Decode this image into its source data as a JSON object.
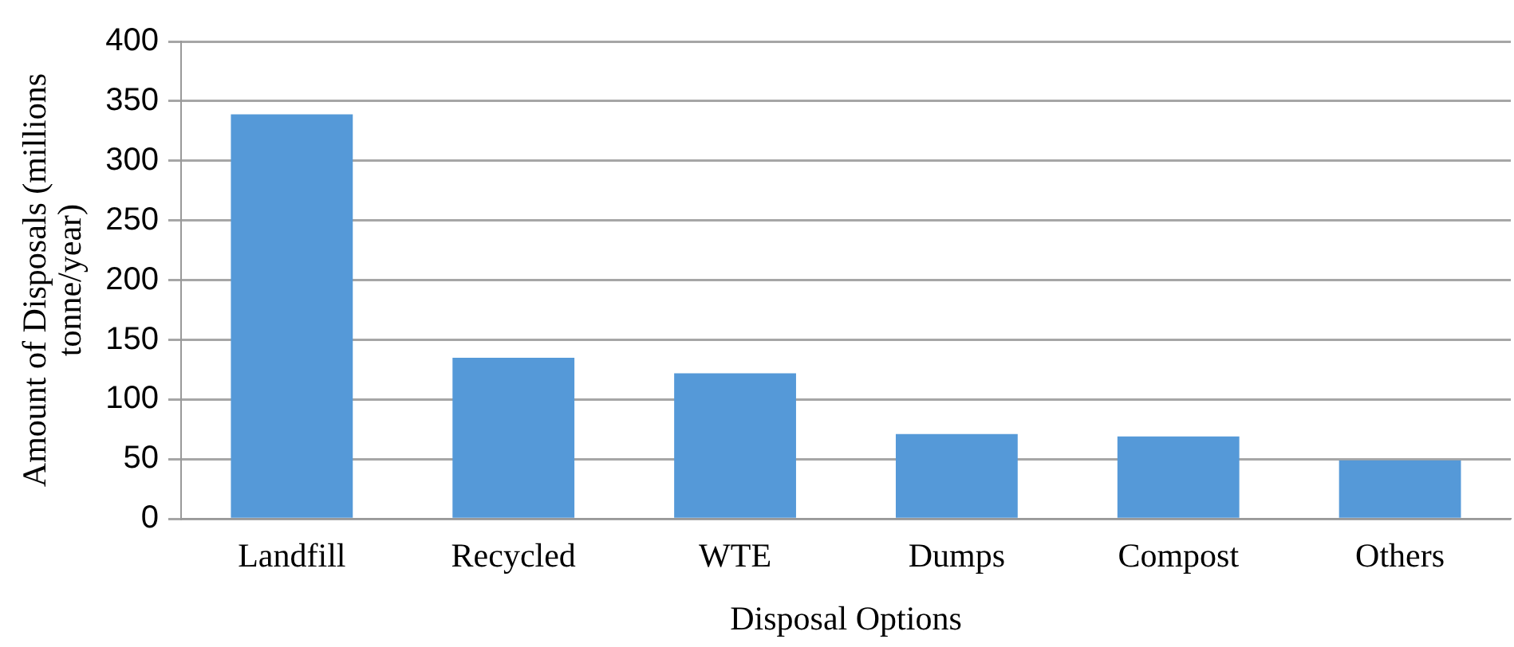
{
  "chart_data": {
    "type": "bar",
    "xlabel": "Disposal Options",
    "ylabel": "Amount of Disposals (millions tonne/year)",
    "categories": [
      "Landfill",
      "Recycled",
      "WTE",
      "Dumps",
      "Compost",
      "Others"
    ],
    "values": [
      339,
      135,
      122,
      71,
      69,
      49
    ],
    "color": "#5599d8",
    "ylim": [
      0,
      400
    ],
    "yticks": [
      0,
      50,
      100,
      150,
      200,
      250,
      300,
      350,
      400
    ],
    "grid": "y"
  }
}
